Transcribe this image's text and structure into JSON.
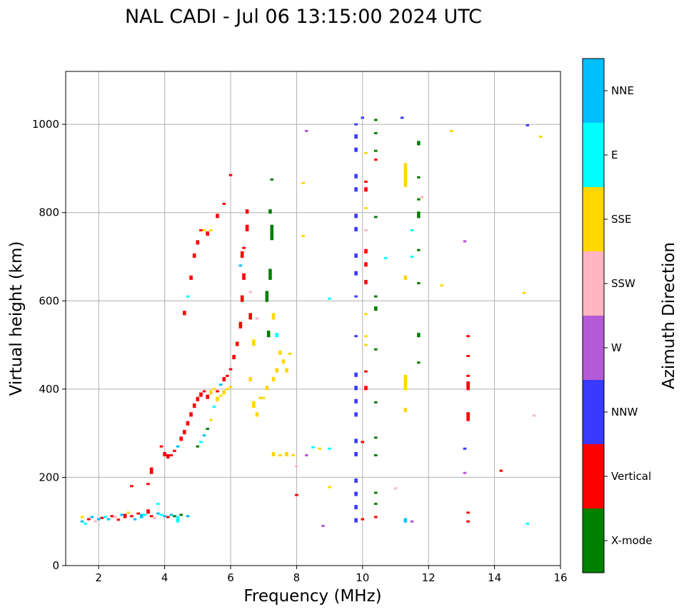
{
  "chart_data": {
    "type": "scatter",
    "title": "NAL CADI - Jul 06 13:15:00 2024 UTC",
    "xlabel": "Frequency (MHz)",
    "ylabel": "Virtual height (km)",
    "xlim": [
      1,
      16
    ],
    "ylim": [
      0,
      1120
    ],
    "xticks": [
      2,
      4,
      6,
      8,
      10,
      12,
      14,
      16
    ],
    "yticks": [
      0,
      200,
      400,
      600,
      800,
      1000
    ],
    "grid": true,
    "colorbar": {
      "label": "Azimuth Direction",
      "categories": [
        "X-mode",
        "Vertical",
        "NNW",
        "W",
        "SSW",
        "SSE",
        "E",
        "NNE"
      ],
      "colors": [
        "#008000",
        "#ff0000",
        "#3a3aff",
        "#b45ad6",
        "#ffb6c1",
        "#ffd700",
        "#00ffff",
        "#00bfff"
      ]
    },
    "points_format": "[frequency_MHz, height_km, category_index, extra_height_km]",
    "points": [
      [
        1.5,
        100,
        7,
        0
      ],
      [
        1.5,
        110,
        5,
        0
      ],
      [
        1.6,
        95,
        6,
        0
      ],
      [
        1.7,
        105,
        1,
        0
      ],
      [
        1.8,
        110,
        7,
        0
      ],
      [
        1.9,
        100,
        4,
        0
      ],
      [
        2.0,
        105,
        7,
        0
      ],
      [
        2.1,
        108,
        1,
        0
      ],
      [
        2.2,
        110,
        6,
        0
      ],
      [
        2.3,
        105,
        7,
        0
      ],
      [
        2.4,
        112,
        1,
        0
      ],
      [
        2.5,
        110,
        4,
        0
      ],
      [
        2.6,
        104,
        1,
        0
      ],
      [
        2.7,
        115,
        7,
        0
      ],
      [
        2.8,
        110,
        1,
        5
      ],
      [
        2.9,
        120,
        5,
        0
      ],
      [
        3.0,
        112,
        1,
        0
      ],
      [
        3.1,
        105,
        7,
        0
      ],
      [
        3.2,
        118,
        1,
        0
      ],
      [
        3.3,
        110,
        7,
        5
      ],
      [
        3.4,
        115,
        6,
        0
      ],
      [
        3.5,
        120,
        1,
        5
      ],
      [
        3.6,
        112,
        1,
        0
      ],
      [
        3.7,
        108,
        4,
        0
      ],
      [
        3.8,
        118,
        7,
        0
      ],
      [
        3.9,
        115,
        6,
        0
      ],
      [
        4.0,
        112,
        7,
        0
      ],
      [
        4.1,
        110,
        1,
        0
      ],
      [
        4.2,
        115,
        7,
        0
      ],
      [
        4.3,
        112,
        0,
        0
      ],
      [
        4.4,
        110,
        6,
        0
      ],
      [
        4.5,
        115,
        0,
        0
      ],
      [
        4.7,
        112,
        7,
        0
      ],
      [
        3.0,
        180,
        1,
        0
      ],
      [
        3.5,
        185,
        1,
        0
      ],
      [
        3.6,
        210,
        1,
        10
      ],
      [
        4.4,
        100,
        6,
        5
      ],
      [
        3.8,
        140,
        6,
        0
      ],
      [
        3.9,
        270,
        1,
        0
      ],
      [
        4.0,
        250,
        1,
        5
      ],
      [
        4.1,
        245,
        1,
        5
      ],
      [
        4.2,
        250,
        1,
        0
      ],
      [
        4.3,
        260,
        1,
        0
      ],
      [
        4.4,
        270,
        7,
        0
      ],
      [
        4.5,
        285,
        1,
        5
      ],
      [
        4.6,
        300,
        1,
        5
      ],
      [
        4.7,
        320,
        1,
        5
      ],
      [
        4.8,
        340,
        1,
        5
      ],
      [
        4.9,
        360,
        1,
        5
      ],
      [
        5.0,
        375,
        1,
        5
      ],
      [
        5.1,
        385,
        1,
        5
      ],
      [
        5.2,
        395,
        1,
        0
      ],
      [
        5.3,
        380,
        1,
        5
      ],
      [
        5.4,
        390,
        5,
        5
      ],
      [
        5.5,
        400,
        5,
        0
      ],
      [
        5.6,
        395,
        1,
        0
      ],
      [
        5.7,
        410,
        7,
        0
      ],
      [
        5.8,
        420,
        1,
        5
      ],
      [
        5.9,
        430,
        1,
        0
      ],
      [
        6.0,
        445,
        1,
        0
      ],
      [
        6.1,
        470,
        1,
        5
      ],
      [
        6.2,
        500,
        1,
        5
      ],
      [
        5.0,
        270,
        0,
        0
      ],
      [
        5.1,
        280,
        6,
        0
      ],
      [
        5.2,
        295,
        7,
        0
      ],
      [
        5.3,
        310,
        0,
        0
      ],
      [
        5.4,
        330,
        5,
        0
      ],
      [
        5.5,
        360,
        6,
        0
      ],
      [
        5.6,
        375,
        5,
        5
      ],
      [
        5.7,
        385,
        5,
        0
      ],
      [
        5.8,
        390,
        5,
        5
      ],
      [
        5.9,
        400,
        5,
        0
      ],
      [
        6.0,
        405,
        5,
        0
      ],
      [
        4.6,
        570,
        1,
        5
      ],
      [
        4.7,
        610,
        6,
        0
      ],
      [
        4.8,
        650,
        1,
        5
      ],
      [
        4.9,
        700,
        1,
        5
      ],
      [
        5.0,
        730,
        1,
        5
      ],
      [
        5.1,
        760,
        1,
        0
      ],
      [
        5.2,
        760,
        5,
        0
      ],
      [
        5.3,
        750,
        1,
        5
      ],
      [
        5.4,
        760,
        5,
        0
      ],
      [
        5.6,
        790,
        1,
        5
      ],
      [
        5.8,
        820,
        1,
        0
      ],
      [
        6.0,
        885,
        1,
        0
      ],
      [
        6.3,
        540,
        1,
        10
      ],
      [
        6.35,
        600,
        1,
        10
      ],
      [
        6.4,
        650,
        1,
        10
      ],
      [
        6.35,
        700,
        1,
        10
      ],
      [
        6.5,
        760,
        1,
        10
      ],
      [
        6.3,
        680,
        7,
        0
      ],
      [
        6.4,
        720,
        1,
        0
      ],
      [
        6.5,
        800,
        1,
        5
      ],
      [
        6.6,
        560,
        1,
        10
      ],
      [
        6.6,
        620,
        4,
        0
      ],
      [
        6.7,
        500,
        5,
        10
      ],
      [
        6.8,
        560,
        4,
        0
      ],
      [
        6.6,
        420,
        5,
        5
      ],
      [
        6.7,
        360,
        5,
        10
      ],
      [
        6.8,
        340,
        5,
        5
      ],
      [
        6.9,
        380,
        5,
        0
      ],
      [
        7.1,
        600,
        0,
        20
      ],
      [
        7.2,
        650,
        0,
        20
      ],
      [
        7.25,
        740,
        0,
        30
      ],
      [
        7.2,
        800,
        0,
        5
      ],
      [
        7.25,
        875,
        0,
        0
      ],
      [
        7.15,
        520,
        0,
        10
      ],
      [
        7.3,
        560,
        5,
        10
      ],
      [
        7.4,
        520,
        6,
        5
      ],
      [
        7.5,
        480,
        5,
        5
      ],
      [
        7.6,
        460,
        5,
        5
      ],
      [
        7.7,
        440,
        5,
        5
      ],
      [
        7.8,
        480,
        5,
        0
      ],
      [
        7.3,
        420,
        5,
        5
      ],
      [
        7.1,
        400,
        5,
        5
      ],
      [
        7.4,
        440,
        5,
        5
      ],
      [
        7.0,
        380,
        5,
        0
      ],
      [
        7.3,
        250,
        5,
        5
      ],
      [
        7.5,
        250,
        5,
        0
      ],
      [
        7.7,
        250,
        5,
        5
      ],
      [
        7.9,
        250,
        5,
        0
      ],
      [
        8.3,
        250,
        3,
        0
      ],
      [
        8.5,
        268,
        6,
        0
      ],
      [
        8.7,
        265,
        5,
        0
      ],
      [
        9.0,
        265,
        6,
        0
      ],
      [
        9.0,
        178,
        5,
        0
      ],
      [
        8.0,
        160,
        1,
        0
      ],
      [
        8.0,
        225,
        4,
        0
      ],
      [
        8.8,
        90,
        3,
        0
      ],
      [
        9.0,
        605,
        6,
        0
      ],
      [
        8.3,
        985,
        3,
        0
      ],
      [
        8.2,
        867,
        5,
        0
      ],
      [
        8.2,
        747,
        5,
        0
      ],
      [
        9.8,
        100,
        2,
        5
      ],
      [
        9.8,
        130,
        2,
        5
      ],
      [
        9.8,
        160,
        2,
        5
      ],
      [
        9.8,
        190,
        2,
        5
      ],
      [
        9.8,
        250,
        2,
        5
      ],
      [
        9.8,
        280,
        2,
        5
      ],
      [
        9.8,
        340,
        2,
        5
      ],
      [
        9.8,
        370,
        2,
        5
      ],
      [
        9.8,
        400,
        2,
        5
      ],
      [
        9.8,
        430,
        2,
        5
      ],
      [
        9.8,
        520,
        2,
        0
      ],
      [
        9.8,
        610,
        2,
        0
      ],
      [
        9.8,
        660,
        2,
        5
      ],
      [
        9.8,
        700,
        2,
        5
      ],
      [
        9.8,
        760,
        2,
        5
      ],
      [
        9.8,
        790,
        2,
        5
      ],
      [
        9.8,
        850,
        2,
        5
      ],
      [
        9.8,
        880,
        2,
        5
      ],
      [
        9.8,
        940,
        2,
        5
      ],
      [
        9.8,
        970,
        2,
        5
      ],
      [
        9.8,
        1000,
        2,
        0
      ],
      [
        10.1,
        400,
        1,
        5
      ],
      [
        10.1,
        440,
        1,
        0
      ],
      [
        10.1,
        500,
        5,
        0
      ],
      [
        10.1,
        520,
        5,
        0
      ],
      [
        10.1,
        570,
        5,
        0
      ],
      [
        10.1,
        640,
        1,
        5
      ],
      [
        10.1,
        680,
        1,
        5
      ],
      [
        10.1,
        710,
        1,
        5
      ],
      [
        10.1,
        760,
        4,
        0
      ],
      [
        10.1,
        810,
        5,
        0
      ],
      [
        10.1,
        850,
        1,
        5
      ],
      [
        10.1,
        870,
        1,
        0
      ],
      [
        10.1,
        935,
        5,
        0
      ],
      [
        10.0,
        280,
        1,
        0
      ],
      [
        10.0,
        105,
        1,
        0
      ],
      [
        10.0,
        1015,
        2,
        0
      ],
      [
        10.4,
        110,
        1,
        0
      ],
      [
        10.4,
        140,
        0,
        0
      ],
      [
        10.4,
        165,
        0,
        0
      ],
      [
        10.4,
        250,
        0,
        0
      ],
      [
        10.4,
        290,
        0,
        0
      ],
      [
        10.4,
        370,
        0,
        0
      ],
      [
        10.4,
        490,
        0,
        0
      ],
      [
        10.4,
        580,
        0,
        5
      ],
      [
        10.4,
        610,
        0,
        0
      ],
      [
        10.4,
        790,
        0,
        0
      ],
      [
        10.4,
        920,
        1,
        0
      ],
      [
        10.4,
        940,
        0,
        0
      ],
      [
        10.4,
        980,
        0,
        0
      ],
      [
        10.4,
        1010,
        0,
        0
      ],
      [
        10.7,
        697,
        6,
        0
      ],
      [
        11.3,
        860,
        5,
        50
      ],
      [
        11.3,
        400,
        5,
        30
      ],
      [
        11.3,
        350,
        5,
        5
      ],
      [
        11.3,
        650,
        5,
        5
      ],
      [
        11.3,
        100,
        7,
        5
      ],
      [
        11.0,
        175,
        4,
        0
      ],
      [
        11.5,
        100,
        3,
        0
      ],
      [
        11.7,
        460,
        0,
        0
      ],
      [
        11.7,
        520,
        0,
        5
      ],
      [
        11.7,
        640,
        0,
        0
      ],
      [
        11.7,
        715,
        0,
        0
      ],
      [
        11.7,
        790,
        0,
        10
      ],
      [
        11.7,
        830,
        0,
        0
      ],
      [
        11.7,
        880,
        0,
        0
      ],
      [
        11.7,
        955,
        0,
        5
      ],
      [
        11.8,
        835,
        4,
        0
      ],
      [
        11.2,
        1015,
        2,
        0
      ],
      [
        11.5,
        700,
        6,
        0
      ],
      [
        11.5,
        760,
        6,
        0
      ],
      [
        13.2,
        100,
        1,
        0
      ],
      [
        13.2,
        120,
        1,
        0
      ],
      [
        13.2,
        330,
        1,
        15
      ],
      [
        13.2,
        345,
        1,
        0
      ],
      [
        13.2,
        400,
        1,
        15
      ],
      [
        13.2,
        430,
        1,
        0
      ],
      [
        13.2,
        475,
        1,
        0
      ],
      [
        13.2,
        520,
        1,
        0
      ],
      [
        13.1,
        265,
        2,
        0
      ],
      [
        13.1,
        210,
        3,
        0
      ],
      [
        13.1,
        735,
        3,
        0
      ],
      [
        12.7,
        985,
        5,
        0
      ],
      [
        12.4,
        635,
        5,
        0
      ],
      [
        14.2,
        215,
        1,
        0
      ],
      [
        15.2,
        340,
        4,
        0
      ],
      [
        15.0,
        95,
        6,
        0
      ],
      [
        14.9,
        618,
        5,
        0
      ],
      [
        15.4,
        972,
        5,
        0
      ],
      [
        15.0,
        998,
        2,
        0
      ]
    ]
  }
}
